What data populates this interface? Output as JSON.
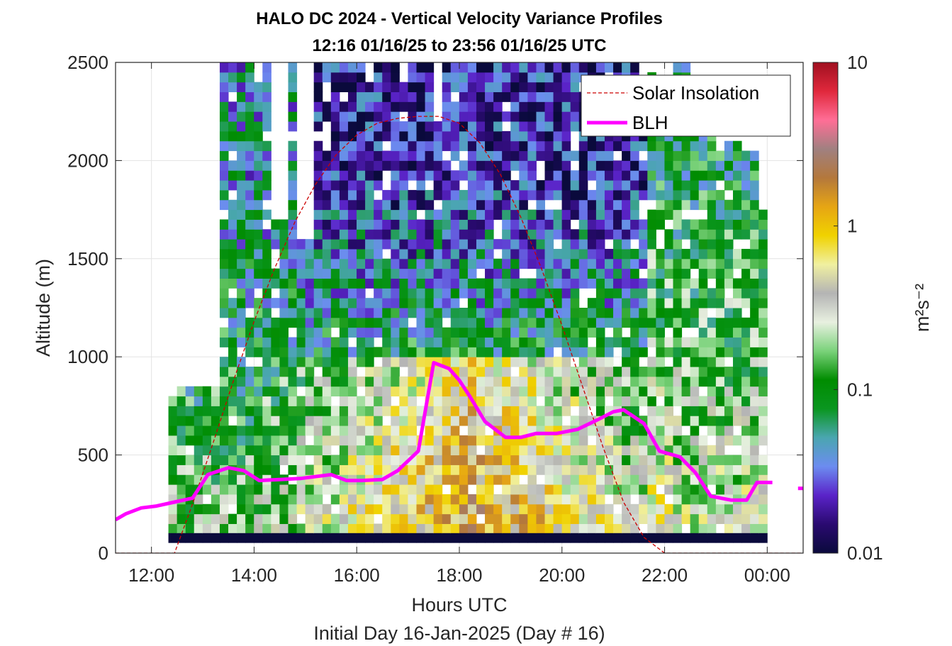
{
  "chart_data": {
    "type": "heatmap",
    "title_line1": "HALO DC 2024 - Vertical Velocity Variance Profiles",
    "title_line2": "12:16 01/16/25 to 23:56 01/16/25  UTC",
    "xlabel": "Hours UTC",
    "xlabel2": "Initial Day 16-Jan-2025 (Day # 16)",
    "ylabel": "Altitude (m)",
    "xlim": [
      11.3,
      24.7
    ],
    "ylim": [
      0,
      2500
    ],
    "x_ticks": [
      {
        "value": 12,
        "label": "12:00"
      },
      {
        "value": 14,
        "label": "14:00"
      },
      {
        "value": 16,
        "label": "16:00"
      },
      {
        "value": 18,
        "label": "18:00"
      },
      {
        "value": 20,
        "label": "20:00"
      },
      {
        "value": 22,
        "label": "22:00"
      },
      {
        "value": 24,
        "label": "00:00"
      }
    ],
    "y_ticks": [
      {
        "value": 0,
        "label": "0"
      },
      {
        "value": 500,
        "label": "500"
      },
      {
        "value": 1000,
        "label": "1000"
      },
      {
        "value": 1500,
        "label": "1500"
      },
      {
        "value": 2000,
        "label": "2000"
      },
      {
        "value": 2500,
        "label": "2500"
      }
    ],
    "grid": true,
    "colorbar": {
      "label": "m²s⁻²",
      "scale": "log",
      "range": [
        0.01,
        10
      ],
      "ticks": [
        {
          "value": 0.01,
          "label": "0.01"
        },
        {
          "value": 0.1,
          "label": "0.1"
        },
        {
          "value": 1,
          "label": "1"
        },
        {
          "value": 10,
          "label": "10"
        }
      ],
      "colors": [
        "#0a0a3c",
        "#2a0a70",
        "#5a23c8",
        "#6c8cf0",
        "#4aa6b0",
        "#0a9620",
        "#008c00",
        "#7ad27a",
        "#e8f0e0",
        "#b4b4b4",
        "#f0f0a0",
        "#f0d200",
        "#e6a514",
        "#b4783c",
        "#a08080",
        "#ff6e96",
        "#e0283c",
        "#a01020"
      ]
    },
    "heatmap_grid": {
      "x_start": 12.33,
      "x_step": 0.1667,
      "n_cols": 70,
      "y_start": 100,
      "y_step": 50,
      "n_rows": 48,
      "no_data_above_m": [
        760,
        850,
        850,
        850,
        850,
        850,
        2500,
        2500,
        2500,
        2500,
        2400,
        2500,
        1700,
        1700,
        2500,
        1600,
        1600,
        2500,
        2500,
        2500,
        2500,
        2500,
        2500,
        2400,
        2500,
        2500,
        2500,
        2500,
        2500,
        2500,
        2500,
        2200,
        2500,
        2500,
        2500,
        2500,
        2500,
        2500,
        2500,
        2500,
        2500,
        2500,
        2500,
        2500,
        2500,
        2500,
        2500,
        2500,
        2500,
        2500,
        2500,
        2500,
        2500,
        2500,
        2500,
        2400,
        2450,
        2400,
        2250,
        2500,
        2500,
        2300,
        2300,
        2250,
        2050,
        2100,
        2100,
        2050,
        2050,
        1750
      ]
    },
    "series": [
      {
        "name": "Solar Insolation",
        "style": "dashed",
        "color": "#cc0000",
        "x": [
          11.3,
          12.45,
          12.8,
          13.2,
          13.6,
          14.0,
          14.4,
          14.8,
          15.2,
          15.6,
          16.0,
          16.4,
          16.8,
          17.2,
          17.4,
          17.6,
          18.0,
          18.4,
          18.8,
          19.2,
          19.6,
          20.0,
          20.4,
          20.8,
          21.2,
          21.6,
          22.0,
          22.1,
          22.2,
          24.7
        ],
        "y": [
          0,
          0,
          250,
          560,
          880,
          1180,
          1450,
          1690,
          1880,
          2030,
          2130,
          2190,
          2215,
          2225,
          2225,
          2225,
          2190,
          2090,
          1930,
          1710,
          1450,
          1160,
          850,
          540,
          260,
          80,
          0,
          0,
          0,
          0
        ]
      },
      {
        "name": "BLH",
        "style": "solid",
        "color": "#ff00ff",
        "x": [
          11.3,
          11.5,
          11.8,
          12.1,
          12.45,
          12.8,
          13.1,
          13.5,
          13.8,
          14.1,
          14.5,
          14.9,
          15.5,
          15.8,
          16.1,
          16.5,
          16.8,
          17.0,
          17.2,
          17.5,
          17.8,
          18.0,
          18.2,
          18.5,
          18.9,
          19.2,
          19.5,
          19.9,
          20.3,
          20.7,
          21.0,
          21.2,
          21.6,
          21.9,
          22.3,
          22.6,
          22.9,
          23.3,
          23.6,
          23.8,
          24.1
        ],
        "y": [
          170,
          200,
          230,
          240,
          260,
          280,
          400,
          435,
          420,
          370,
          375,
          380,
          400,
          370,
          370,
          375,
          420,
          470,
          520,
          970,
          940,
          880,
          800,
          670,
          590,
          590,
          610,
          610,
          630,
          680,
          720,
          730,
          660,
          520,
          490,
          410,
          290,
          270,
          270,
          360,
          360
        ]
      },
      {
        "name": "",
        "style": "solid",
        "color": "#ff00ff",
        "x": [
          24.6,
          24.7
        ],
        "y": [
          330,
          330
        ]
      }
    ],
    "legend": {
      "placement": "top-right",
      "entries": [
        {
          "label": "Solar Insolation",
          "style": "dashed",
          "color": "#cc0000"
        },
        {
          "label": "BLH",
          "style": "solid",
          "color": "#ff00ff"
        }
      ]
    }
  }
}
